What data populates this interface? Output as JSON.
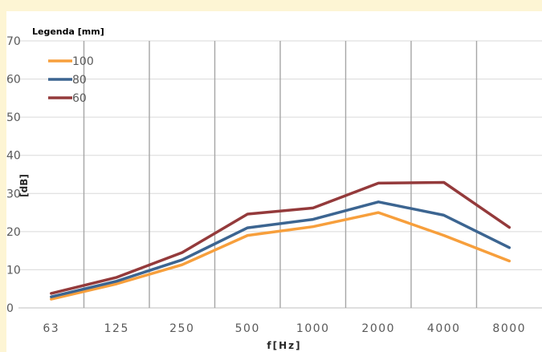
{
  "chart_data": {
    "type": "line",
    "xlabel": "f[Hz]",
    "ylabel": "[dB]",
    "categories": [
      "63",
      "125",
      "250",
      "500",
      "1000",
      "2000",
      "4000",
      "8000"
    ],
    "ylim": [
      0,
      70
    ],
    "yticks": [
      "0",
      "10",
      "20",
      "30",
      "40",
      "50",
      "60",
      "70"
    ],
    "grid": {
      "horizontal": true,
      "vertical": true
    },
    "legend": {
      "title": "Legenda [mm]",
      "placement": "top-left"
    },
    "series": [
      {
        "name": "100",
        "color": "#f79f3c",
        "values": [
          2.3,
          6.3,
          11.3,
          19.0,
          21.3,
          25.0,
          19.0,
          12.3
        ]
      },
      {
        "name": "80",
        "color": "#3c6591",
        "values": [
          2.9,
          7.0,
          12.6,
          21.0,
          23.2,
          27.8,
          24.3,
          15.8
        ]
      },
      {
        "name": "60",
        "color": "#943a3b",
        "values": [
          3.8,
          8.0,
          14.5,
          24.6,
          26.2,
          32.7,
          32.9,
          21.1
        ]
      }
    ]
  }
}
